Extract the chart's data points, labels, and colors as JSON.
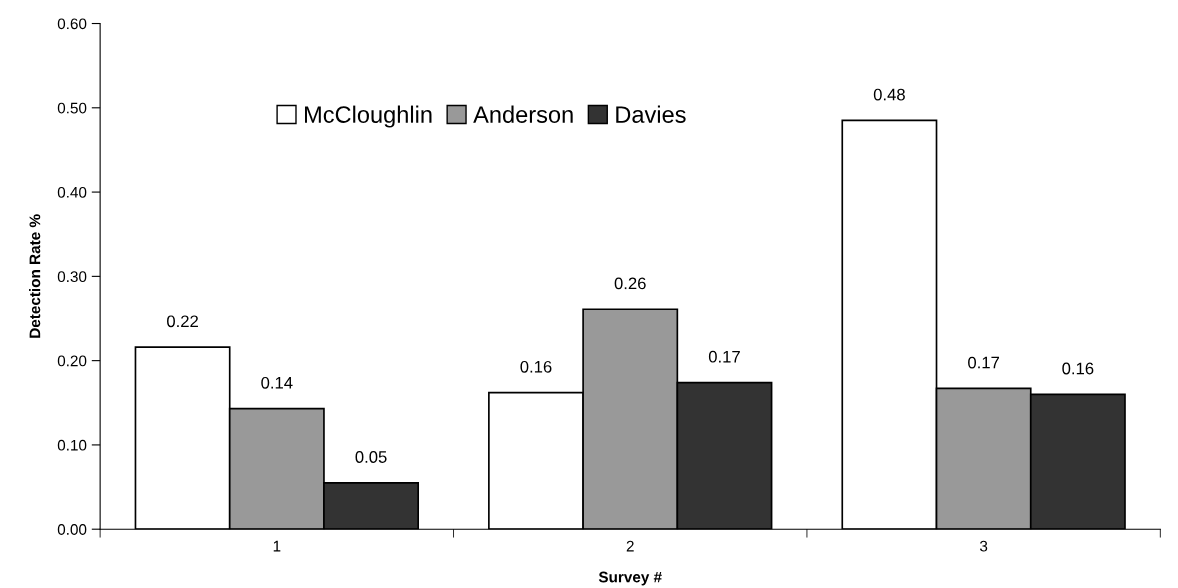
{
  "chart_data": {
    "type": "bar",
    "xlabel": "Survey #",
    "ylabel": "Detection Rate %",
    "categories": [
      "1",
      "2",
      "3"
    ],
    "series": [
      {
        "name": "McCloughlin",
        "color": "#ffffff",
        "values": [
          0.216,
          0.162,
          0.485
        ],
        "value_labels": [
          "0.22",
          "0.16",
          "0.48"
        ]
      },
      {
        "name": "Anderson",
        "color": "#999999",
        "values": [
          0.143,
          0.261,
          0.167
        ],
        "value_labels": [
          "0.14",
          "0.26",
          "0.17"
        ]
      },
      {
        "name": "Davies",
        "color": "#333333",
        "values": [
          0.055,
          0.174,
          0.16
        ],
        "value_labels": [
          "0.05",
          "0.17",
          "0.16"
        ]
      }
    ],
    "ylim": [
      0,
      0.6
    ],
    "yticks": [
      {
        "value": 0,
        "label": "0.00"
      },
      {
        "value": 0.1,
        "label": "0.10"
      },
      {
        "value": 0.2,
        "label": "0.20"
      },
      {
        "value": 0.3,
        "label": "0.30"
      },
      {
        "value": 0.4,
        "label": "0.40"
      },
      {
        "value": 0.5,
        "label": "0.50"
      },
      {
        "value": 0.6,
        "label": "0.60"
      }
    ],
    "legend": "top",
    "grid": false
  }
}
